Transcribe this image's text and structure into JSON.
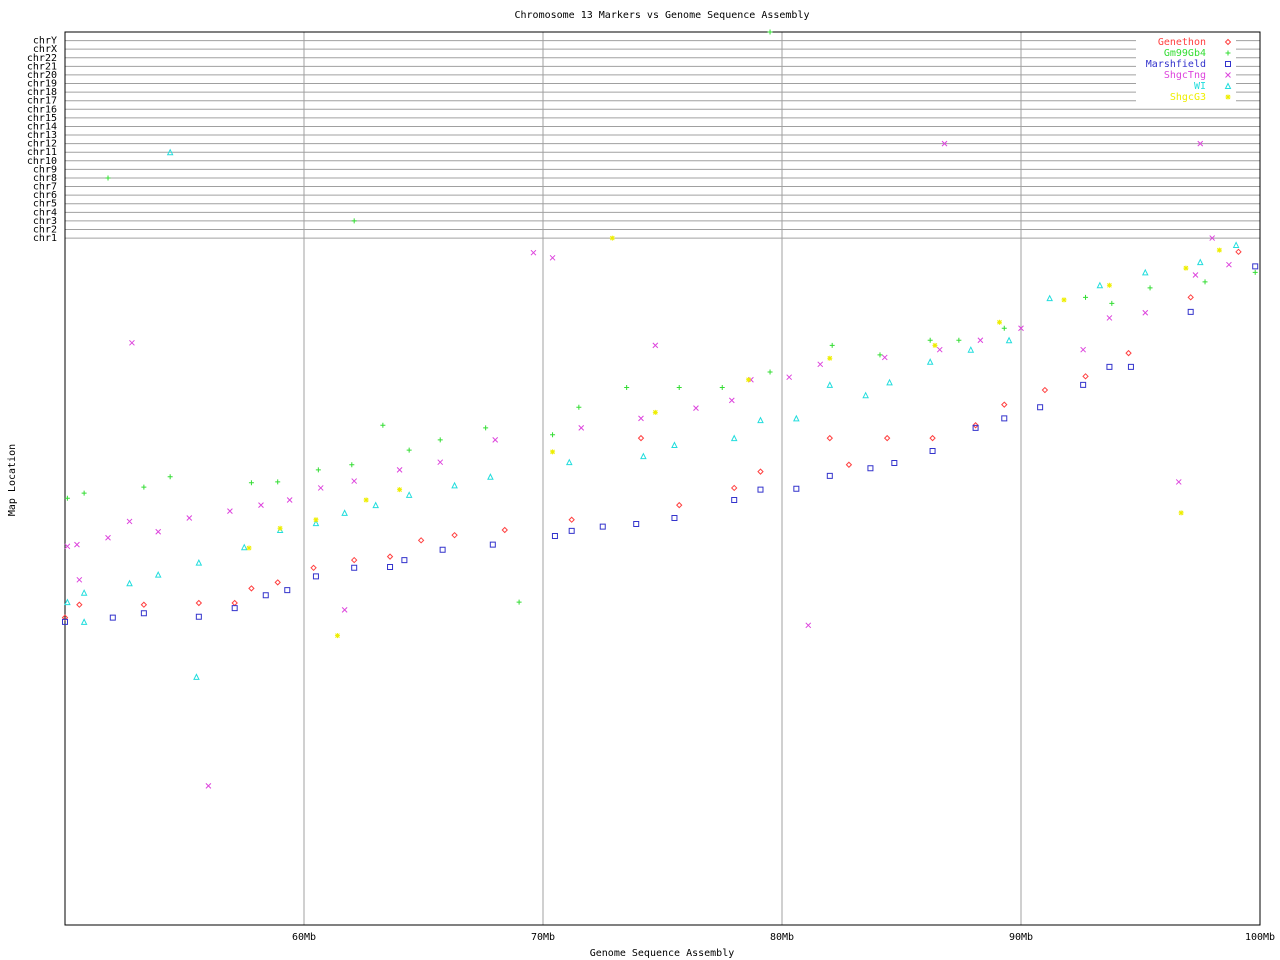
{
  "chart_data": {
    "type": "scatter",
    "title": "Chromosome 13 Markers vs Genome Sequence Assembly",
    "x_label": "Genome Sequence Assembly",
    "y_label": "Map Location",
    "xlim": [
      50,
      100
    ],
    "ylim": [
      0,
      104
    ],
    "xticks": [
      {
        "value": 60,
        "label": "60Mb"
      },
      {
        "value": 70,
        "label": "70Mb"
      },
      {
        "value": 80,
        "label": "80Mb"
      },
      {
        "value": 90,
        "label": "90Mb"
      },
      {
        "value": 100,
        "label": "100Mb"
      }
    ],
    "yticks": [
      {
        "value": 80,
        "label": "chr1"
      },
      {
        "value": 81,
        "label": "chr2"
      },
      {
        "value": 82,
        "label": "chr3"
      },
      {
        "value": 83,
        "label": "chr4"
      },
      {
        "value": 84,
        "label": "chr5"
      },
      {
        "value": 85,
        "label": "chr6"
      },
      {
        "value": 86,
        "label": "chr7"
      },
      {
        "value": 87,
        "label": "chr8"
      },
      {
        "value": 88,
        "label": "chr9"
      },
      {
        "value": 89,
        "label": "chr10"
      },
      {
        "value": 90,
        "label": "chr11"
      },
      {
        "value": 91,
        "label": "chr12"
      },
      {
        "value": 92,
        "label": "chr13"
      },
      {
        "value": 93,
        "label": "chr14"
      },
      {
        "value": 94,
        "label": "chr15"
      },
      {
        "value": 95,
        "label": "chr16"
      },
      {
        "value": 96,
        "label": "chr17"
      },
      {
        "value": 97,
        "label": "chr18"
      },
      {
        "value": 98,
        "label": "chr19"
      },
      {
        "value": 99,
        "label": "chr20"
      },
      {
        "value": 100,
        "label": "chr21"
      },
      {
        "value": 101,
        "label": "chr22"
      },
      {
        "value": 102,
        "label": "chrX"
      },
      {
        "value": 103,
        "label": "chrY"
      }
    ],
    "grid": true,
    "legend": "top-right",
    "series": [
      {
        "name": "Genethon",
        "color": "#ff4040",
        "marker": "diamond",
        "x": [
          50,
          50.6,
          53.3,
          55.6,
          57.1,
          57.8,
          58.9,
          60.4,
          62.1,
          63.6,
          64.9,
          66.3,
          68.4,
          71.2,
          74.1,
          75.7,
          78.0,
          79.1,
          82.0,
          82.8,
          84.4,
          86.3,
          88.1,
          89.3,
          91.0,
          92.7,
          94.5,
          97.1,
          99.1
        ],
        "values": [
          35.8,
          37.3,
          37.3,
          37.5,
          37.5,
          39.2,
          39.9,
          41.6,
          42.5,
          42.9,
          44.8,
          45.4,
          46.0,
          47.2,
          56.7,
          48.9,
          50.9,
          52.8,
          56.7,
          53.6,
          56.7,
          56.7,
          58.2,
          60.6,
          62.3,
          63.9,
          66.6,
          73.1,
          78.4
        ]
      },
      {
        "name": "Gm99Gb4",
        "color": "#33dd33",
        "marker": "plus",
        "x": [
          50.1,
          50.8,
          53.3,
          54.4,
          57.8,
          58.9,
          60.6,
          62.0,
          63.3,
          64.4,
          65.7,
          67.6,
          69.0,
          70.4,
          71.5,
          73.5,
          75.7,
          77.5,
          79.5,
          82.1,
          84.1,
          86.2,
          87.4,
          89.3,
          92.7,
          93.8,
          95.4,
          97.7,
          99.8,
          51.8,
          62.1,
          79.5
        ],
        "values": [
          49.7,
          50.3,
          51.0,
          52.2,
          51.5,
          51.6,
          53.0,
          53.6,
          58.2,
          55.3,
          56.5,
          57.9,
          37.6,
          57.1,
          60.3,
          62.6,
          62.6,
          62.6,
          64.4,
          67.5,
          66.4,
          68.1,
          68.1,
          69.5,
          73.1,
          72.4,
          74.2,
          74.9,
          76.0,
          87,
          82,
          104
        ]
      },
      {
        "name": "Marshfield",
        "color": "#3333cc",
        "marker": "square",
        "x": [
          50.0,
          52.0,
          53.3,
          55.6,
          57.1,
          58.4,
          59.3,
          60.5,
          62.1,
          63.6,
          64.2,
          65.8,
          67.9,
          70.5,
          71.2,
          72.5,
          73.9,
          75.5,
          78.0,
          79.1,
          80.6,
          82.0,
          83.7,
          84.7,
          86.3,
          88.1,
          89.3,
          90.8,
          92.6,
          93.7,
          94.6,
          97.1,
          99.8
        ],
        "values": [
          35.3,
          35.8,
          36.3,
          35.9,
          36.9,
          38.4,
          39.0,
          40.6,
          41.6,
          41.7,
          42.5,
          43.7,
          44.3,
          45.3,
          45.9,
          46.4,
          46.7,
          47.4,
          49.5,
          50.7,
          50.8,
          52.3,
          53.2,
          53.8,
          55.2,
          57.9,
          59.0,
          60.3,
          62.9,
          65.0,
          65.0,
          71.4,
          76.7
        ]
      },
      {
        "name": "ShgcTng",
        "color": "#dd44dd",
        "marker": "cross",
        "x": [
          50.1,
          50.5,
          51.8,
          52.7,
          53.9,
          55.2,
          56.9,
          58.2,
          59.4,
          60.7,
          62.1,
          64.0,
          65.7,
          68.0,
          69.6,
          70.4,
          71.6,
          74.1,
          76.4,
          77.9,
          78.7,
          80.3,
          81.6,
          84.3,
          86.6,
          88.3,
          90.0,
          92.6,
          93.7,
          95.2,
          97.3,
          98.7,
          52.8,
          74.7,
          81.1,
          56.0,
          61.7,
          96.6,
          50.6,
          86.8,
          97.5,
          98.0
        ],
        "values": [
          44.1,
          44.3,
          45.1,
          47.0,
          45.8,
          47.4,
          48.2,
          48.9,
          49.5,
          50.9,
          51.7,
          53.0,
          53.9,
          56.5,
          78.3,
          77.7,
          57.9,
          59.0,
          60.2,
          61.1,
          63.5,
          63.8,
          65.3,
          66.1,
          67.0,
          68.1,
          69.5,
          67.0,
          70.7,
          71.3,
          75.7,
          76.9,
          67.8,
          67.5,
          34.9,
          16.2,
          36.7,
          51.6,
          40.2,
          91,
          91,
          80
        ]
      },
      {
        "name": "WI",
        "color": "#22dddd",
        "marker": "triangle",
        "x": [
          50.1,
          50.8,
          52.7,
          53.9,
          55.6,
          57.5,
          59.0,
          60.5,
          61.7,
          63.0,
          64.4,
          66.3,
          67.8,
          71.1,
          74.2,
          75.5,
          78.0,
          79.1,
          80.6,
          82.0,
          83.5,
          84.5,
          86.2,
          87.9,
          89.5,
          91.2,
          93.3,
          95.2,
          97.5,
          99.0,
          55.5,
          50.8,
          54.4
        ],
        "values": [
          37.6,
          38.7,
          39.8,
          40.8,
          42.2,
          44.0,
          46.0,
          46.8,
          48.0,
          48.9,
          50.1,
          51.2,
          52.2,
          53.9,
          54.6,
          55.9,
          56.7,
          58.8,
          59.0,
          62.9,
          61.7,
          63.2,
          65.6,
          67.0,
          68.1,
          73.0,
          74.5,
          76.0,
          77.2,
          79.2,
          28.9,
          35.3,
          90
        ]
      },
      {
        "name": "ShgcG3",
        "color": "#eeee00",
        "marker": "star",
        "x": [
          57.7,
          59.0,
          60.5,
          62.6,
          64.0,
          70.4,
          74.7,
          78.6,
          82.0,
          86.4,
          89.1,
          91.8,
          93.7,
          96.9,
          98.3,
          61.4,
          96.7,
          72.9
        ],
        "values": [
          43.9,
          46.2,
          47.2,
          49.5,
          50.7,
          55.1,
          59.7,
          63.5,
          66.0,
          67.5,
          70.2,
          72.8,
          74.5,
          76.5,
          78.6,
          33.7,
          48.0,
          80
        ]
      }
    ]
  }
}
